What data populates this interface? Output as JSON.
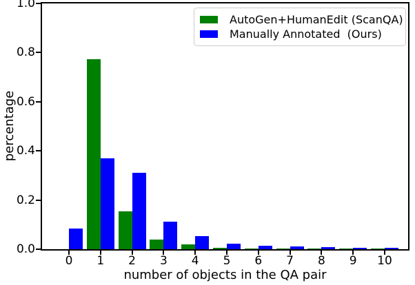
{
  "chart_data": {
    "type": "bar",
    "title": "",
    "xlabel": "number of objects in the QA pair",
    "ylabel": "percentage",
    "categories": [
      "0",
      "1",
      "2",
      "3",
      "4",
      "5",
      "6",
      "7",
      "8",
      "9",
      "10"
    ],
    "series": [
      {
        "name": "AutoGen+HumanEdit (ScanQA)",
        "color": "#008000",
        "values": [
          0.0,
          0.772,
          0.155,
          0.038,
          0.02,
          0.007,
          0.004,
          0.002,
          0.001,
          0.001,
          0.001
        ]
      },
      {
        "name": "Manually Annotated  (Ours)",
        "color": "#0000ff",
        "values": [
          0.085,
          0.369,
          0.31,
          0.112,
          0.054,
          0.022,
          0.014,
          0.011,
          0.008,
          0.006,
          0.005
        ]
      }
    ],
    "ylim": [
      0.0,
      1.0
    ],
    "yticks": [
      "0.0",
      "0.2",
      "0.4",
      "0.6",
      "0.8",
      "1.0"
    ],
    "ytick_values": [
      0.0,
      0.2,
      0.4,
      0.6,
      0.8,
      1.0
    ],
    "grid": false,
    "legend_position": "upper right",
    "axis_color": "#000000",
    "background_color": "#ffffff"
  }
}
